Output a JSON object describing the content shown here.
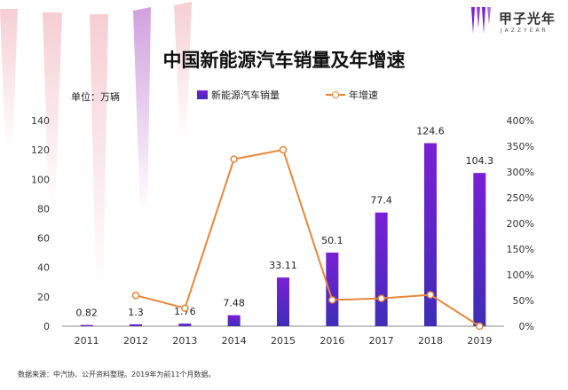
{
  "logo": {
    "cn": "甲子光年",
    "en": "JAZZYEAR"
  },
  "unit_label": "单位：万辆",
  "source_note": "数据来源：中汽协、公开资料整理。2019年为前11个月数据。",
  "colors": {
    "bar_top": "#7a1fd6",
    "bar_bottom": "#3e2eb8",
    "line": "#e8873a",
    "axis": "#888888"
  },
  "chart_data": {
    "type": "bar",
    "title": "中国新能源汽车销量及年增速",
    "categories": [
      "2011",
      "2012",
      "2013",
      "2014",
      "2015",
      "2016",
      "2017",
      "2018",
      "2019"
    ],
    "series": [
      {
        "name": "新能源汽车销量",
        "type": "bar",
        "axis": "left",
        "values": [
          0.82,
          1.3,
          1.76,
          7.48,
          33.11,
          50.1,
          77.4,
          124.6,
          104.3
        ],
        "labels": [
          "0.82",
          "1.3",
          "1.76",
          "7.48",
          "33.11",
          "50.1",
          "77.4",
          "124.6",
          "104.3"
        ]
      },
      {
        "name": "年增速",
        "type": "line",
        "axis": "right",
        "values": [
          null,
          60,
          35,
          325,
          343,
          51,
          54,
          61,
          0
        ]
      }
    ],
    "y_left": {
      "min": 0,
      "max": 140,
      "ticks": [
        "0",
        "20",
        "40",
        "60",
        "80",
        "100",
        "120",
        "140"
      ]
    },
    "y_right": {
      "min": 0,
      "max": 400,
      "ticks": [
        "0%",
        "50%",
        "100%",
        "150%",
        "200%",
        "250%",
        "300%",
        "350%",
        "400%"
      ]
    },
    "legend_position": "top-center",
    "grid": false
  }
}
